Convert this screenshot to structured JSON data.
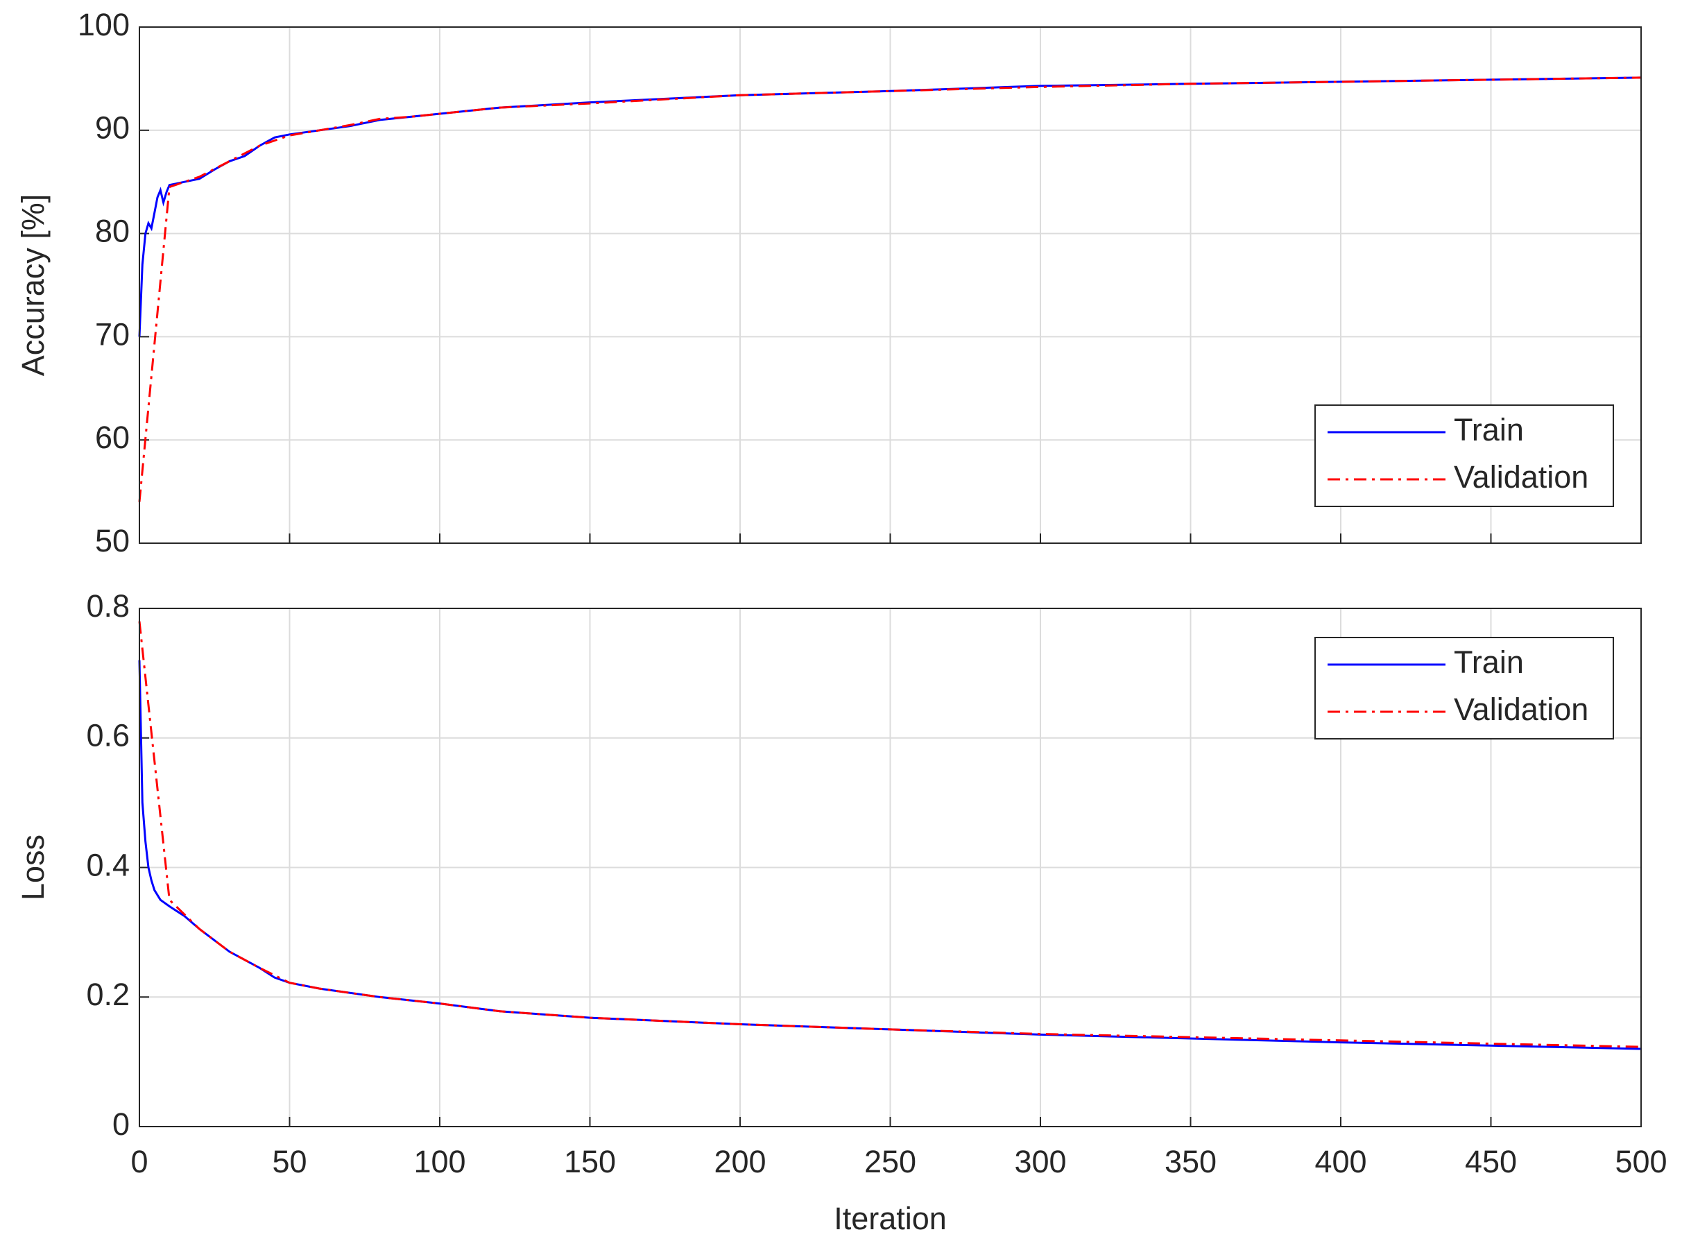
{
  "chart_data": [
    {
      "type": "line",
      "ylabel": "Accuracy [%]",
      "xlim": [
        0,
        500
      ],
      "xticks": [
        0,
        50,
        100,
        150,
        200,
        250,
        300,
        350,
        400,
        450,
        500
      ],
      "ylim": [
        50,
        100
      ],
      "yticks": [
        50,
        60,
        70,
        80,
        90,
        100
      ],
      "grid": true,
      "legend": "lower right",
      "series": [
        {
          "name": "Train",
          "color": "#0000ff",
          "linestyle": "solid",
          "x": [
            0,
            1,
            2,
            3,
            4,
            5,
            6,
            7,
            8,
            9,
            10,
            15,
            20,
            25,
            30,
            35,
            40,
            45,
            50,
            60,
            70,
            80,
            90,
            100,
            120,
            150,
            200,
            250,
            300,
            350,
            400,
            450,
            500
          ],
          "values": [
            70,
            77,
            80,
            81,
            80.5,
            82,
            83.5,
            84.2,
            83,
            84,
            84.7,
            85,
            85.3,
            86.2,
            87,
            87.5,
            88.5,
            89.3,
            89.6,
            90,
            90.4,
            91,
            91.3,
            91.6,
            92.2,
            92.7,
            93.4,
            93.8,
            94.3,
            94.5,
            94.7,
            94.9,
            95.1
          ]
        },
        {
          "name": "Validation",
          "color": "#ff0000",
          "linestyle": "dash-dot",
          "x": [
            0,
            10,
            20,
            30,
            40,
            50,
            60,
            70,
            80,
            90,
            100,
            120,
            150,
            200,
            250,
            300,
            350,
            400,
            450,
            500
          ],
          "values": [
            54,
            84.5,
            85.5,
            87,
            88.5,
            89.5,
            90,
            90.5,
            91.1,
            91.3,
            91.6,
            92.2,
            92.6,
            93.4,
            93.8,
            94.2,
            94.5,
            94.7,
            94.9,
            95.1
          ]
        }
      ]
    },
    {
      "type": "line",
      "ylabel": "Loss",
      "xlabel": "Iteration",
      "xlim": [
        0,
        500
      ],
      "xticks": [
        0,
        50,
        100,
        150,
        200,
        250,
        300,
        350,
        400,
        450,
        500
      ],
      "ylim": [
        0,
        0.8
      ],
      "yticks": [
        0,
        0.2,
        0.4,
        0.6,
        0.8
      ],
      "grid": true,
      "legend": "upper right",
      "series": [
        {
          "name": "Train",
          "color": "#0000ff",
          "linestyle": "solid",
          "x": [
            0,
            1,
            2,
            3,
            4,
            5,
            7,
            10,
            15,
            20,
            30,
            40,
            45,
            50,
            60,
            80,
            100,
            120,
            150,
            200,
            250,
            300,
            350,
            400,
            450,
            500
          ],
          "values": [
            0.72,
            0.5,
            0.44,
            0.4,
            0.38,
            0.365,
            0.35,
            0.34,
            0.325,
            0.305,
            0.27,
            0.245,
            0.23,
            0.222,
            0.213,
            0.2,
            0.19,
            0.178,
            0.168,
            0.158,
            0.15,
            0.142,
            0.136,
            0.13,
            0.125,
            0.12
          ]
        },
        {
          "name": "Validation",
          "color": "#ff0000",
          "linestyle": "dash-dot",
          "x": [
            0,
            10,
            20,
            30,
            40,
            50,
            60,
            80,
            100,
            120,
            150,
            200,
            250,
            300,
            350,
            400,
            450,
            500
          ],
          "values": [
            0.78,
            0.35,
            0.305,
            0.27,
            0.245,
            0.222,
            0.213,
            0.2,
            0.19,
            0.178,
            0.168,
            0.158,
            0.15,
            0.143,
            0.138,
            0.133,
            0.128,
            0.123
          ]
        }
      ]
    }
  ]
}
